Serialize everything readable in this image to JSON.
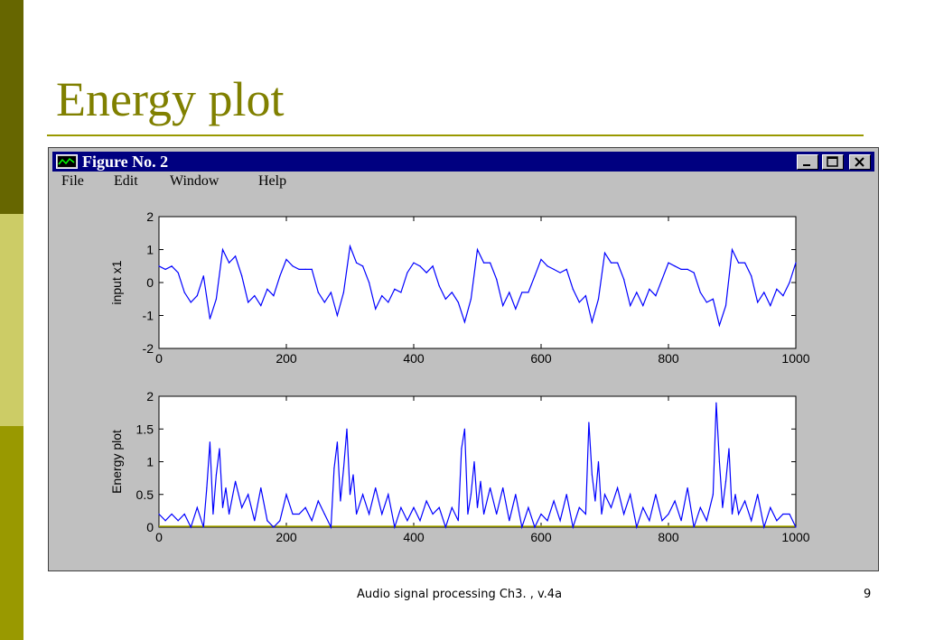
{
  "slide": {
    "title": "Energy plot",
    "footer": "Audio signal processing Ch3. , v.4a",
    "page_number": "9"
  },
  "window": {
    "title": "Figure No. 2",
    "icon": "matlab-figure-icon",
    "menu": [
      "File",
      "Edit",
      "Window",
      "Help"
    ],
    "controls": [
      "minimize",
      "maximize",
      "close"
    ]
  },
  "colors": {
    "line": "#0000ff",
    "baseline": "#b0b000",
    "titlebar": "#000080",
    "title": "#808000"
  },
  "chart_data": [
    {
      "type": "line",
      "ylabel": "input x1",
      "xlim": [
        0,
        1000
      ],
      "ylim": [
        -2,
        2
      ],
      "xticks": [
        0,
        200,
        400,
        600,
        800,
        1000
      ],
      "yticks": [
        -2,
        -1,
        0,
        1,
        2
      ],
      "series": [
        {
          "x": [
            0,
            10,
            20,
            30,
            40,
            50,
            60,
            70,
            80,
            90,
            100,
            110,
            120,
            130,
            140,
            150,
            160,
            170,
            180,
            190,
            200,
            210,
            220,
            230,
            240,
            250,
            260,
            270,
            280,
            290,
            300,
            310,
            320,
            330,
            340,
            350,
            360,
            370,
            380,
            390,
            400,
            410,
            420,
            430,
            440,
            450,
            460,
            470,
            480,
            490,
            500,
            510,
            520,
            530,
            540,
            550,
            560,
            570,
            580,
            590,
            600,
            610,
            620,
            630,
            640,
            650,
            660,
            670,
            680,
            690,
            700,
            710,
            720,
            730,
            740,
            750,
            760,
            770,
            780,
            790,
            800,
            810,
            820,
            830,
            840,
            850,
            860,
            870,
            880,
            890,
            900,
            910,
            920,
            930,
            940,
            950,
            960,
            970,
            980,
            990,
            1000
          ],
          "values": [
            0.5,
            0.4,
            0.5,
            0.3,
            -0.3,
            -0.6,
            -0.4,
            0.2,
            -1.1,
            -0.5,
            1.0,
            0.6,
            0.8,
            0.2,
            -0.6,
            -0.4,
            -0.7,
            -0.2,
            -0.4,
            0.2,
            0.7,
            0.5,
            0.4,
            0.4,
            0.4,
            -0.3,
            -0.6,
            -0.3,
            -1.0,
            -0.3,
            1.1,
            0.6,
            0.5,
            0.0,
            -0.8,
            -0.4,
            -0.6,
            -0.2,
            -0.3,
            0.3,
            0.6,
            0.5,
            0.3,
            0.5,
            -0.1,
            -0.5,
            -0.3,
            -0.6,
            -1.2,
            -0.5,
            1.0,
            0.6,
            0.6,
            0.1,
            -0.7,
            -0.3,
            -0.8,
            -0.3,
            -0.3,
            0.2,
            0.7,
            0.5,
            0.4,
            0.3,
            0.4,
            -0.2,
            -0.6,
            -0.4,
            -1.2,
            -0.5,
            0.9,
            0.6,
            0.6,
            0.1,
            -0.7,
            -0.3,
            -0.7,
            -0.2,
            -0.4,
            0.1,
            0.6,
            0.5,
            0.4,
            0.4,
            0.3,
            -0.3,
            -0.6,
            -0.5,
            -1.3,
            -0.7,
            1.0,
            0.6,
            0.6,
            0.2,
            -0.6,
            -0.3,
            -0.7,
            -0.2,
            -0.4,
            0.0,
            0.6
          ]
        }
      ]
    },
    {
      "type": "line",
      "ylabel": "Energy plot",
      "xlim": [
        0,
        1000
      ],
      "ylim": [
        0,
        2
      ],
      "xticks": [
        0,
        200,
        400,
        600,
        800,
        1000
      ],
      "yticks": [
        0,
        0.5,
        1,
        1.5,
        2
      ],
      "series": [
        {
          "x": [
            0,
            10,
            20,
            30,
            40,
            50,
            60,
            70,
            75,
            80,
            85,
            90,
            95,
            100,
            105,
            110,
            120,
            130,
            140,
            150,
            160,
            170,
            180,
            190,
            200,
            210,
            220,
            230,
            240,
            250,
            260,
            270,
            275,
            280,
            285,
            290,
            295,
            300,
            305,
            310,
            320,
            330,
            340,
            350,
            360,
            370,
            380,
            390,
            400,
            410,
            420,
            430,
            440,
            450,
            460,
            470,
            475,
            480,
            485,
            490,
            495,
            500,
            505,
            510,
            520,
            530,
            540,
            550,
            560,
            570,
            580,
            590,
            600,
            610,
            620,
            630,
            640,
            650,
            660,
            670,
            675,
            680,
            685,
            690,
            695,
            700,
            710,
            720,
            730,
            740,
            750,
            760,
            770,
            780,
            790,
            800,
            810,
            820,
            830,
            840,
            850,
            860,
            870,
            875,
            880,
            885,
            890,
            895,
            900,
            905,
            910,
            920,
            930,
            940,
            950,
            960,
            970,
            980,
            990,
            1000
          ],
          "values": [
            0.2,
            0.1,
            0.2,
            0.1,
            0.2,
            0.0,
            0.3,
            0.0,
            0.6,
            1.3,
            0.2,
            0.8,
            1.2,
            0.3,
            0.6,
            0.2,
            0.7,
            0.3,
            0.5,
            0.1,
            0.6,
            0.1,
            0.0,
            0.1,
            0.5,
            0.2,
            0.2,
            0.3,
            0.1,
            0.4,
            0.2,
            0.0,
            0.9,
            1.3,
            0.4,
            0.9,
            1.5,
            0.5,
            0.8,
            0.2,
            0.5,
            0.2,
            0.6,
            0.2,
            0.5,
            0.0,
            0.3,
            0.1,
            0.3,
            0.1,
            0.4,
            0.2,
            0.3,
            0.0,
            0.3,
            0.1,
            1.2,
            1.5,
            0.2,
            0.5,
            1.0,
            0.3,
            0.7,
            0.2,
            0.6,
            0.2,
            0.6,
            0.1,
            0.5,
            0.0,
            0.3,
            0.0,
            0.2,
            0.1,
            0.4,
            0.1,
            0.5,
            0.0,
            0.3,
            0.2,
            1.6,
            0.8,
            0.4,
            1.0,
            0.2,
            0.5,
            0.3,
            0.6,
            0.2,
            0.5,
            0.0,
            0.3,
            0.1,
            0.5,
            0.1,
            0.2,
            0.4,
            0.1,
            0.6,
            0.0,
            0.3,
            0.1,
            0.5,
            1.9,
            1.0,
            0.3,
            0.7,
            1.2,
            0.2,
            0.5,
            0.2,
            0.4,
            0.1,
            0.5,
            0.0,
            0.3,
            0.1,
            0.2,
            0.2,
            0.0
          ]
        }
      ]
    }
  ]
}
